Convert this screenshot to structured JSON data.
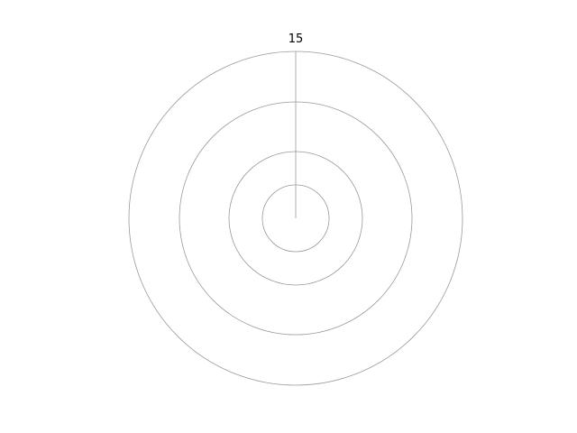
{
  "chart_data": {
    "type": "radar",
    "categories": [
      "15"
    ],
    "rings": 4,
    "grid": true,
    "grid_color": "#999999",
    "label_color": "#000000",
    "background": "#ffffff"
  }
}
